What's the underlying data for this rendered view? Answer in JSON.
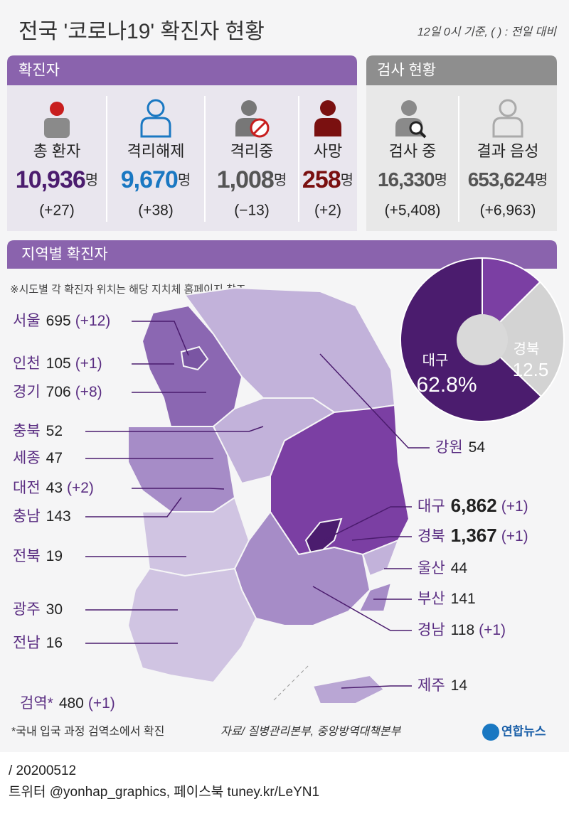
{
  "header": {
    "title": "전국 '코로나19' 확진자 현황",
    "note": "12일 0시 기준, ( ) : 전일 대비"
  },
  "confirmed": {
    "title": "확진자",
    "items": [
      {
        "label": "총 환자",
        "value": "10,936",
        "unit": "명",
        "change": "(+27)"
      },
      {
        "label": "격리해제",
        "value": "9,670",
        "unit": "명",
        "change": "(+38)"
      },
      {
        "label": "격리중",
        "value": "1,008",
        "unit": "명",
        "change": "(−13)"
      },
      {
        "label": "사망",
        "value": "258",
        "unit": "명",
        "change": "(+2)"
      }
    ]
  },
  "tests": {
    "title": "검사 현황",
    "items": [
      {
        "label": "검사 중",
        "value": "16,330",
        "unit": "명",
        "change": "(+5,408)"
      },
      {
        "label": "결과 음성",
        "value": "653,624",
        "unit": "명",
        "change": "(+6,963)"
      }
    ]
  },
  "regional": {
    "title": "지역별 확진자",
    "note": "※시도별 각 확진자 위치는 해당 지치체 홈페이지 참조",
    "regions": [
      {
        "name": "서울",
        "count": "695",
        "change": "(+12)"
      },
      {
        "name": "인천",
        "count": "105",
        "change": "(+1)"
      },
      {
        "name": "경기",
        "count": "706",
        "change": "(+8)"
      },
      {
        "name": "충북",
        "count": "52"
      },
      {
        "name": "세종",
        "count": "47"
      },
      {
        "name": "대전",
        "count": "43",
        "change": "(+2)"
      },
      {
        "name": "충남",
        "count": "143"
      },
      {
        "name": "전북",
        "count": "19"
      },
      {
        "name": "광주",
        "count": "30"
      },
      {
        "name": "전남",
        "count": "16"
      },
      {
        "name": "검역*",
        "count": "480",
        "change": "(+1)"
      },
      {
        "name": "강원",
        "count": "54"
      },
      {
        "name": "대구",
        "count": "6,862",
        "change": "(+1)"
      },
      {
        "name": "경북",
        "count": "1,367",
        "change": "(+1)"
      },
      {
        "name": "울산",
        "count": "44"
      },
      {
        "name": "부산",
        "count": "141"
      },
      {
        "name": "경남",
        "count": "118",
        "change": "(+1)"
      },
      {
        "name": "제주",
        "count": "14"
      }
    ]
  },
  "chart_data": {
    "type": "pie",
    "categories": [
      "대구",
      "경북",
      null
    ],
    "values": [
      62.8,
      12.5,
      24.7
    ],
    "value_labels": [
      "62.8%",
      "12.5",
      null
    ],
    "colors": [
      "#4b1c6e",
      "#7b3fa3",
      "#d3d3d3"
    ]
  },
  "footer": {
    "quarantine_note": "*국내 입국 과정 검역소에서 확진",
    "source": "자료/ 질병관리본부, 중앙방역대책본부",
    "logo": "연합뉴스",
    "date": "/ 20200512",
    "social": "트위터 @yonhap_graphics, 페이스북 tuney.kr/LeYN1"
  }
}
